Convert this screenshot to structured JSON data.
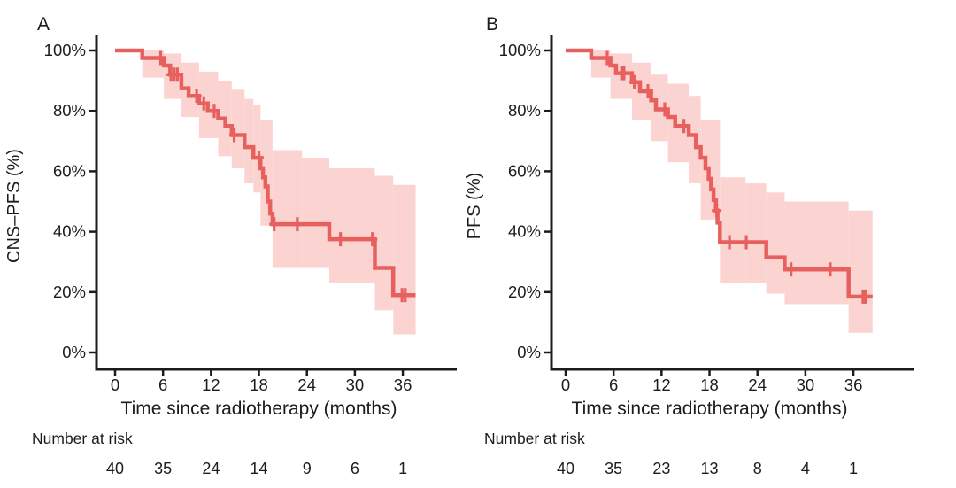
{
  "colors": {
    "curve": "#e8605e",
    "ci_band": "#fbd4d2",
    "axis": "#1c1c1c",
    "text": "#1c1c1c",
    "background": "#ffffff"
  },
  "chart_data": [
    {
      "type": "line",
      "variant": "kaplan-meier-step",
      "panel_label": "A",
      "ylabel": "CNS–PFS (%)",
      "xlabel": "Time since radiotherapy (months)",
      "x_ticks": [
        0,
        6,
        12,
        18,
        24,
        30,
        36
      ],
      "y_ticks": [
        100,
        80,
        60,
        40,
        20,
        0
      ],
      "y_tick_suffix": "%",
      "xlim": [
        0,
        43
      ],
      "ylim": [
        0,
        100
      ],
      "grid": false,
      "legend": "none",
      "steps": [
        [
          0,
          100
        ],
        [
          3.4,
          100
        ],
        [
          3.4,
          97.5
        ],
        [
          6.1,
          97.5
        ],
        [
          6.1,
          95
        ],
        [
          6.9,
          95
        ],
        [
          6.9,
          92
        ],
        [
          8.3,
          92
        ],
        [
          8.3,
          87.5
        ],
        [
          9.2,
          87.5
        ],
        [
          9.2,
          85
        ],
        [
          10.5,
          85
        ],
        [
          10.5,
          82.5
        ],
        [
          11.6,
          82.5
        ],
        [
          11.6,
          80
        ],
        [
          12.9,
          80
        ],
        [
          12.9,
          77.5
        ],
        [
          13.8,
          77.5
        ],
        [
          13.8,
          75
        ],
        [
          14.6,
          75
        ],
        [
          14.6,
          72
        ],
        [
          16.2,
          72
        ],
        [
          16.2,
          68
        ],
        [
          17.3,
          68
        ],
        [
          17.3,
          64.5
        ],
        [
          18.2,
          64.5
        ],
        [
          18.2,
          61
        ],
        [
          18.5,
          61
        ],
        [
          18.5,
          58
        ],
        [
          18.8,
          58
        ],
        [
          18.8,
          55
        ],
        [
          19.1,
          55
        ],
        [
          19.1,
          50
        ],
        [
          19.4,
          50
        ],
        [
          19.4,
          46
        ],
        [
          19.7,
          46
        ],
        [
          19.7,
          42.5
        ],
        [
          26.8,
          42.5
        ],
        [
          26.8,
          37.5
        ],
        [
          32.5,
          37.5
        ],
        [
          32.5,
          28
        ],
        [
          34.8,
          28
        ],
        [
          34.8,
          19
        ],
        [
          37.6,
          19
        ]
      ],
      "censors": [
        [
          5.7,
          97.5
        ],
        [
          7.0,
          92
        ],
        [
          7.4,
          92
        ],
        [
          7.8,
          92
        ],
        [
          10.2,
          85
        ],
        [
          11.1,
          82.5
        ],
        [
          12.4,
          80
        ],
        [
          14.9,
          72
        ],
        [
          18.0,
          64.5
        ],
        [
          19.9,
          42.5
        ],
        [
          22.8,
          42.5
        ],
        [
          28.2,
          37.5
        ],
        [
          32.2,
          37.5
        ],
        [
          35.9,
          19
        ],
        [
          36.3,
          19
        ]
      ],
      "ci_band": [
        [
          3.4,
          6.1,
          91,
          100
        ],
        [
          6.1,
          8.3,
          84,
          99
        ],
        [
          8.3,
          10.5,
          78,
          96
        ],
        [
          10.5,
          12.9,
          71,
          93
        ],
        [
          12.9,
          14.6,
          65,
          90
        ],
        [
          14.6,
          16.2,
          61,
          87
        ],
        [
          16.2,
          17.3,
          56,
          84
        ],
        [
          17.3,
          18.2,
          53,
          82
        ],
        [
          18.2,
          19.7,
          42,
          77
        ],
        [
          19.7,
          23.4,
          28,
          67
        ],
        [
          23.4,
          26.8,
          28,
          64.5
        ],
        [
          26.8,
          32.5,
          23,
          61
        ],
        [
          32.5,
          34.8,
          14,
          58.5
        ],
        [
          34.8,
          37.6,
          6,
          55.5
        ]
      ],
      "number_at_risk": {
        "label": "Number at risk",
        "times": [
          0,
          6,
          12,
          18,
          24,
          30,
          36
        ],
        "values": [
          40,
          35,
          24,
          14,
          9,
          6,
          1
        ]
      }
    },
    {
      "type": "line",
      "variant": "kaplan-meier-step",
      "panel_label": "B",
      "ylabel": "PFS (%)",
      "xlabel": "Time since radiotherapy (months)",
      "x_ticks": [
        0,
        6,
        12,
        18,
        24,
        30,
        36
      ],
      "y_ticks": [
        100,
        80,
        60,
        40,
        20,
        0
      ],
      "y_tick_suffix": "%",
      "xlim": [
        0,
        43
      ],
      "ylim": [
        0,
        100
      ],
      "grid": false,
      "legend": "none",
      "steps": [
        [
          0,
          100
        ],
        [
          3.2,
          100
        ],
        [
          3.2,
          97.5
        ],
        [
          5.6,
          97.5
        ],
        [
          5.6,
          95
        ],
        [
          6.3,
          95
        ],
        [
          6.3,
          92.5
        ],
        [
          8.3,
          92.5
        ],
        [
          8.3,
          89.5
        ],
        [
          9.3,
          89.5
        ],
        [
          9.3,
          86.5
        ],
        [
          10.7,
          86.5
        ],
        [
          10.7,
          83.5
        ],
        [
          11.3,
          83.5
        ],
        [
          11.3,
          80.5
        ],
        [
          12.8,
          80.5
        ],
        [
          12.8,
          78
        ],
        [
          13.7,
          78
        ],
        [
          13.7,
          75
        ],
        [
          15.4,
          75
        ],
        [
          15.4,
          72
        ],
        [
          16.3,
          72
        ],
        [
          16.3,
          68
        ],
        [
          16.9,
          68
        ],
        [
          16.9,
          64.5
        ],
        [
          17.5,
          64.5
        ],
        [
          17.5,
          61
        ],
        [
          17.9,
          61
        ],
        [
          17.9,
          57.5
        ],
        [
          18.2,
          57.5
        ],
        [
          18.2,
          54
        ],
        [
          18.5,
          54
        ],
        [
          18.5,
          50.5
        ],
        [
          18.8,
          50.5
        ],
        [
          18.8,
          47
        ],
        [
          19.0,
          47
        ],
        [
          19.0,
          43
        ],
        [
          19.3,
          43
        ],
        [
          19.3,
          36.5
        ],
        [
          25.1,
          36.5
        ],
        [
          25.1,
          31.5
        ],
        [
          27.4,
          31.5
        ],
        [
          27.4,
          27.5
        ],
        [
          35.4,
          27.5
        ],
        [
          35.4,
          18.5
        ],
        [
          38.4,
          18.5
        ]
      ],
      "censors": [
        [
          5.2,
          97.5
        ],
        [
          7.0,
          92.5
        ],
        [
          7.3,
          92.5
        ],
        [
          8.6,
          89.5
        ],
        [
          10.3,
          86.5
        ],
        [
          12.4,
          80.5
        ],
        [
          14.8,
          75
        ],
        [
          18.9,
          47
        ],
        [
          20.5,
          36.5
        ],
        [
          22.6,
          36.5
        ],
        [
          28.2,
          27.5
        ],
        [
          33.1,
          27.5
        ],
        [
          37.2,
          18.5
        ],
        [
          37.5,
          18.5
        ]
      ],
      "ci_band": [
        [
          3.2,
          5.6,
          91,
          100
        ],
        [
          5.6,
          8.3,
          84,
          99
        ],
        [
          8.3,
          10.7,
          77,
          96
        ],
        [
          10.7,
          12.8,
          70,
          92
        ],
        [
          12.8,
          15.4,
          63,
          89
        ],
        [
          15.4,
          16.9,
          56,
          85
        ],
        [
          16.9,
          19.3,
          44,
          77
        ],
        [
          19.3,
          22.5,
          23,
          58
        ],
        [
          22.5,
          25.1,
          23,
          56
        ],
        [
          25.1,
          27.4,
          19.5,
          53
        ],
        [
          27.4,
          35.4,
          16,
          50
        ],
        [
          35.4,
          38.4,
          6.5,
          47
        ]
      ],
      "number_at_risk": {
        "label": "Number at risk",
        "times": [
          0,
          6,
          12,
          18,
          24,
          30,
          36
        ],
        "values": [
          40,
          35,
          23,
          13,
          8,
          4,
          1
        ]
      }
    }
  ]
}
